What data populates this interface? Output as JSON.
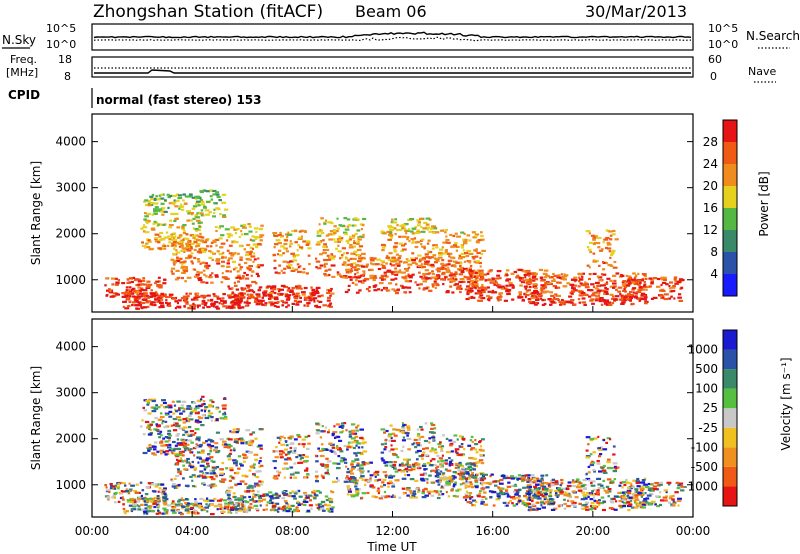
{
  "header": {
    "station": "Zhongshan Station (fitACF)",
    "beam": "Beam 06",
    "date": "30/Mar/2013"
  },
  "sky_panel": {
    "left_label": "N.Sky",
    "right_label": "N.Search",
    "left_ticks": [
      "10^5",
      "10^0"
    ],
    "right_ticks": [
      "10^5",
      "10^0"
    ]
  },
  "freq_panel": {
    "left_label_1": "Freq.",
    "left_label_2": "[MHz]",
    "right_label": "Nave",
    "left_ticks": [
      "18",
      "8"
    ],
    "right_ticks": [
      "60",
      "0"
    ]
  },
  "cpid": {
    "label": "CPID",
    "text": "normal (fast stereo) 153"
  },
  "chart_data": [
    {
      "type": "heatmap",
      "name": "power",
      "ylabel": "Slant Range [km]",
      "ylim": [
        300,
        4600
      ],
      "yticks": [
        "1000",
        "2000",
        "3000",
        "4000"
      ],
      "xlim": [
        "00:00",
        "24:00"
      ],
      "colorbar": {
        "label": "Power [dB]",
        "ticks": [
          "4",
          "8",
          "12",
          "16",
          "20",
          "24",
          "28"
        ],
        "colors": [
          "#1a1aff",
          "#2a52a8",
          "#3a8a6a",
          "#55b845",
          "#e6d21e",
          "#f08c1e",
          "#f05a14",
          "#e61414"
        ]
      }
    },
    {
      "type": "heatmap",
      "name": "velocity",
      "ylabel": "Slant Range [km]",
      "ylim": [
        300,
        4600
      ],
      "yticks": [
        "1000",
        "2000",
        "3000",
        "4000"
      ],
      "xlim": [
        "00:00",
        "24:00"
      ],
      "xlabel": "Time UT",
      "xticks": [
        "00:00",
        "04:00",
        "08:00",
        "12:00",
        "16:00",
        "20:00",
        "00:00"
      ],
      "colorbar": {
        "label": "Velocity [m s⁻¹]",
        "ticks": [
          "1000",
          "500",
          "100",
          "25",
          "-25",
          "-100",
          "-500",
          "-1000"
        ],
        "colors": [
          "#1a1ad0",
          "#2a52a8",
          "#3a8a6a",
          "#55c040",
          "#c8c8c8",
          "#f0c020",
          "#f09020",
          "#f05a14",
          "#e61414"
        ]
      }
    }
  ]
}
